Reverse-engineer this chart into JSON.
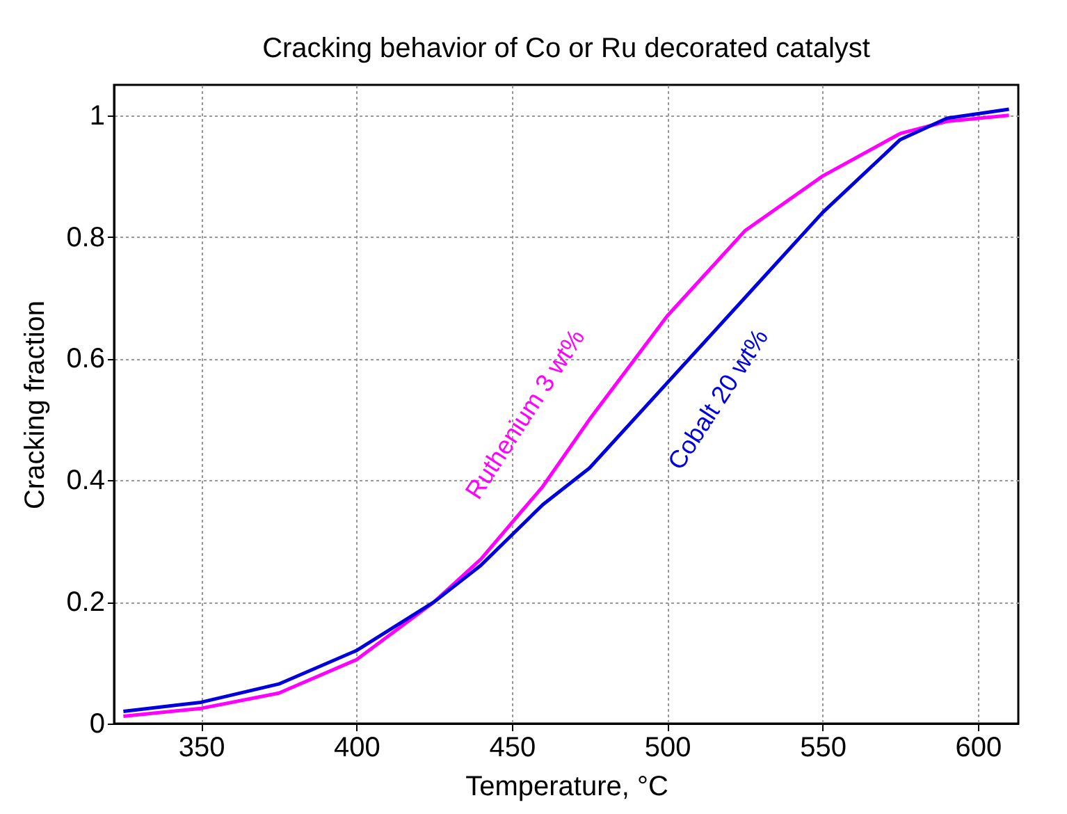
{
  "chart_data": {
    "type": "line",
    "title": "Cracking behavior of Co or Ru decorated catalyst",
    "xlabel": "Temperature, °C",
    "ylabel": "Cracking fraction",
    "x": [
      325,
      350,
      375,
      400,
      425,
      440,
      450,
      460,
      475,
      500,
      525,
      550,
      575,
      590,
      610
    ],
    "series": [
      {
        "name": "Ruthenium 3 wt%",
        "color": "#ff00ff",
        "values": [
          0.012,
          0.025,
          0.05,
          0.105,
          0.2,
          0.27,
          0.33,
          0.39,
          0.5,
          0.67,
          0.81,
          0.9,
          0.97,
          0.99,
          1.0
        ]
      },
      {
        "name": "Cobalt 20 wt%",
        "color": "#0000dd",
        "values": [
          0.02,
          0.035,
          0.065,
          0.12,
          0.2,
          0.26,
          0.31,
          0.36,
          0.42,
          0.56,
          0.7,
          0.84,
          0.96,
          0.995,
          1.01
        ]
      }
    ],
    "xlim": [
      322,
      613
    ],
    "ylim": [
      0,
      1.05
    ],
    "xticks": [
      350,
      400,
      450,
      500,
      550,
      600
    ],
    "yticks": [
      0,
      0.2,
      0.4,
      0.6,
      0.8,
      1
    ],
    "grid": true,
    "line_style": "solid",
    "marker": "none"
  }
}
